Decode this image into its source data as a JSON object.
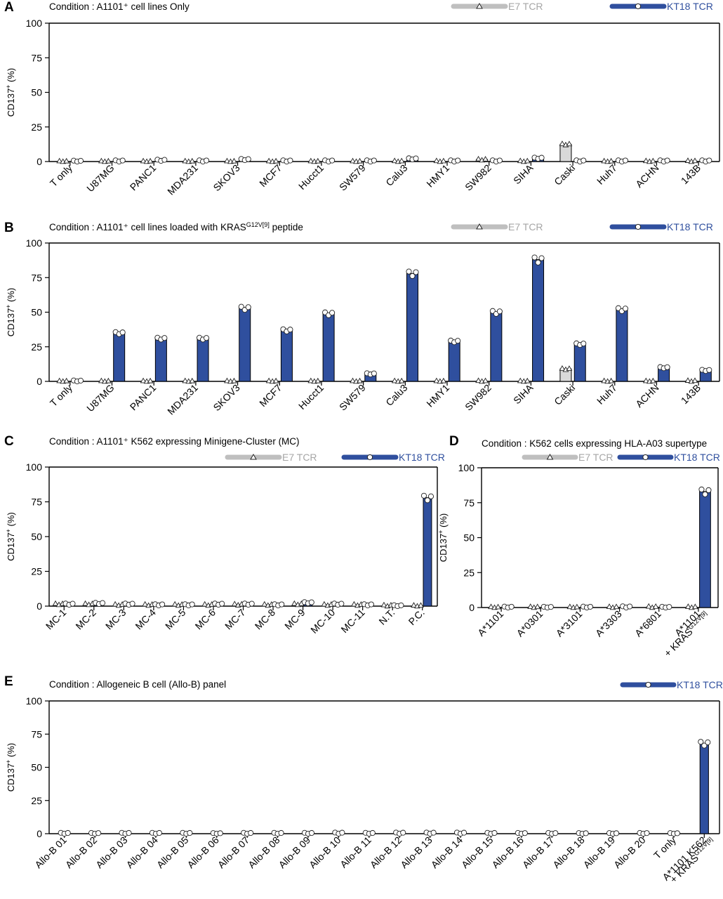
{
  "colors": {
    "e7": "#d9d9d9",
    "e7_stroke": "#333333",
    "e7_legend": "#bfbfbf",
    "e7_text": "#a6a6a6",
    "kt18": "#2f4f9e",
    "kt18_text": "#2f4f9e",
    "axis": "#000000"
  },
  "legend": {
    "e7_label": "E7 TCR",
    "kt18_label": "KT18 TCR"
  },
  "chart_data": [
    {
      "panel": "A",
      "type": "bar",
      "title": "Condition : A1101⁺ cell lines Only",
      "ylabel": "CD137⁺ (%)",
      "ylim": [
        0,
        100
      ],
      "yticks": [
        "0",
        "25",
        "50",
        "75",
        "100"
      ],
      "categories": [
        "T only",
        "U87MG",
        "PANC1",
        "MDA231",
        "SKOV3",
        "MCF7",
        "Hucct1",
        "SW579",
        "Calu3",
        "HMY1",
        "SW982",
        "SIHA",
        "Caski",
        "Huh7",
        "ACHN",
        "143B"
      ],
      "series": [
        {
          "name": "E7 TCR",
          "values": [
            0.1,
            0.1,
            0.1,
            0.1,
            0.1,
            0.1,
            0.1,
            0.1,
            0.2,
            0.2,
            1.5,
            0.2,
            12.5,
            0.1,
            0.2,
            0.3
          ]
        },
        {
          "name": "KT18 TCR",
          "values": [
            0.3,
            0.5,
            1,
            0.5,
            1.5,
            0.5,
            0.5,
            0.5,
            2,
            0.5,
            0.5,
            2.5,
            0.5,
            0.5,
            0.5,
            0.5
          ]
        }
      ]
    },
    {
      "panel": "B",
      "type": "bar",
      "title": "Condition : A1101⁺ cell lines loaded with KRAS",
      "title_sup": "G12V[9]",
      "title_tail": " peptide",
      "ylabel": "CD137⁺ (%)",
      "ylim": [
        0,
        100
      ],
      "yticks": [
        "0",
        "25",
        "50",
        "75",
        "100"
      ],
      "categories": [
        "T only",
        "U87MG",
        "PANC1",
        "MDA231",
        "SKOV3",
        "MCF7",
        "Hucct1",
        "SW579",
        "Calu3",
        "HMY1",
        "SW982",
        "SIHA",
        "Caski",
        "Huh7",
        "ACHN",
        "143B"
      ],
      "series": [
        {
          "name": "E7 TCR",
          "values": [
            0.1,
            0.1,
            0.1,
            0.1,
            0.1,
            0.1,
            0.1,
            0.1,
            0.1,
            0.1,
            0.2,
            0.1,
            9,
            0.1,
            0.1,
            0.3
          ]
        },
        {
          "name": "KT18 TCR",
          "values": [
            0.3,
            35,
            31,
            31,
            53,
            37,
            49,
            5.5,
            78,
            29,
            50,
            88,
            27,
            52,
            10,
            8
          ]
        }
      ]
    },
    {
      "panel": "C",
      "type": "bar",
      "title": "Condition : A1101⁺ K562 expressing Minigene-Cluster (MC)",
      "ylabel": "CD137⁺ (%)",
      "ylim": [
        0,
        100
      ],
      "yticks": [
        "0",
        "25",
        "50",
        "75",
        "100"
      ],
      "categories": [
        "MC-1",
        "MC-2",
        "MC-3",
        "MC-4",
        "MC-5",
        "MC-6",
        "MC-7",
        "MC-8",
        "MC-9",
        "MC-10",
        "MC-11",
        "N.T.",
        "P.C."
      ],
      "series": [
        {
          "name": "E7 TCR",
          "values": [
            1.5,
            1.5,
            1,
            1,
            1,
            1,
            1.2,
            1,
            1.5,
            1,
            1,
            0.5,
            0.3
          ]
        },
        {
          "name": "KT18 TCR",
          "values": [
            1.5,
            2,
            1.5,
            1,
            1,
            1.5,
            1.5,
            1,
            2.5,
            1.5,
            1,
            0.3,
            78
          ]
        }
      ]
    },
    {
      "panel": "D",
      "type": "bar",
      "title": "Condition : K562 cells expressing HLA-A03 supertype",
      "ylabel": "CD137⁺ (%)",
      "ylim": [
        0,
        100
      ],
      "yticks": [
        "0",
        "25",
        "50",
        "75",
        "100"
      ],
      "categories": [
        "A*1101",
        "A*0301",
        "A*3101",
        "A*3303",
        "A*6801",
        "A*1101"
      ],
      "category_line2": [
        "",
        "",
        "",
        "",
        "",
        "+ KRAS"
      ],
      "category_sup": [
        "",
        "",
        "",
        "",
        "",
        "G12V[9]"
      ],
      "series": [
        {
          "name": "E7 TCR",
          "values": [
            0.2,
            0.3,
            0.2,
            0.3,
            0.5,
            0.3
          ]
        },
        {
          "name": "KT18 TCR",
          "values": [
            0.3,
            0.2,
            0.3,
            0.5,
            0.2,
            83
          ]
        }
      ]
    },
    {
      "panel": "E",
      "type": "bar",
      "title": "Condition : Allogeneic B cell (Allo-B) panel",
      "ylabel": "CD137⁺ (%)",
      "ylim": [
        0,
        100
      ],
      "yticks": [
        "0",
        "25",
        "50",
        "75",
        "100"
      ],
      "categories": [
        "Allo-B 01",
        "Allo-B 02",
        "Allo-B 03",
        "Allo-B 04",
        "Allo-B 05",
        "Allo-B 06",
        "Allo-B 07",
        "Allo-B 08",
        "Allo-B 09",
        "Allo-B 10",
        "Allo-B 11",
        "Allo-B 12",
        "Allo-B 13",
        "Allo-B 14",
        "Allo-B 15",
        "Allo-B 16",
        "Allo-B 17",
        "Allo-B 18",
        "Allo-B 19",
        "Allo-B 20",
        "T only",
        "A*1101 K562"
      ],
      "category_line2": [
        "",
        "",
        "",
        "",
        "",
        "",
        "",
        "",
        "",
        "",
        "",
        "",
        "",
        "",
        "",
        "",
        "",
        "",
        "",
        "",
        "",
        "+ KRAS"
      ],
      "category_sup": [
        "",
        "",
        "",
        "",
        "",
        "",
        "",
        "",
        "",
        "",
        "",
        "",
        "",
        "",
        "",
        "",
        "",
        "",
        "",
        "",
        "",
        "G12V[9]"
      ],
      "series": [
        {
          "name": "KT18 TCR",
          "values": [
            0.3,
            0.2,
            0.3,
            0.3,
            0.3,
            0.1,
            0.3,
            0.3,
            0.3,
            0.5,
            0.3,
            0.5,
            0.5,
            0.5,
            0.3,
            0.2,
            0.2,
            0.1,
            0.1,
            0.2,
            0.1,
            68
          ]
        }
      ]
    }
  ]
}
